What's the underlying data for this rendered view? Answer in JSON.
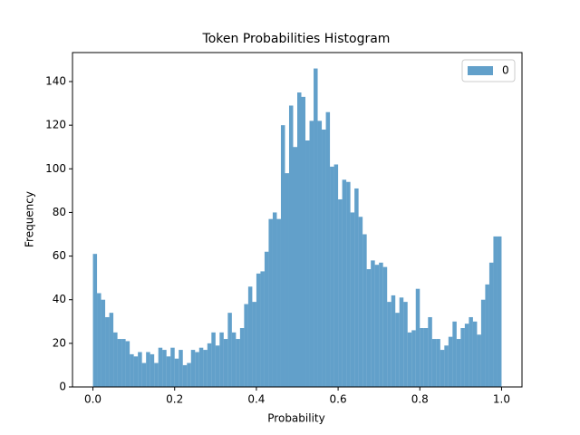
{
  "chart_data": {
    "type": "histogram",
    "title": "Token Probabilities Histogram",
    "xlabel": "Probability",
    "ylabel": "Frequency",
    "bins": [
      0,
      0.01,
      0.02,
      0.03,
      0.04,
      0.05,
      0.06,
      0.07,
      0.08,
      0.09,
      0.1,
      0.11,
      0.12,
      0.13,
      0.14,
      0.15,
      0.16,
      0.17,
      0.18,
      0.19,
      0.2,
      0.21,
      0.22,
      0.23,
      0.24,
      0.25,
      0.26,
      0.27,
      0.28,
      0.29,
      0.3,
      0.31,
      0.32,
      0.33,
      0.34,
      0.35,
      0.36,
      0.37,
      0.38,
      0.39,
      0.4,
      0.41,
      0.42,
      0.43,
      0.44,
      0.45,
      0.46,
      0.47,
      0.48,
      0.49,
      0.5,
      0.51,
      0.52,
      0.53,
      0.54,
      0.55,
      0.56,
      0.57,
      0.58,
      0.59,
      0.6,
      0.61,
      0.62,
      0.63,
      0.64,
      0.65,
      0.66,
      0.67,
      0.68,
      0.69,
      0.7,
      0.71,
      0.72,
      0.73,
      0.74,
      0.75,
      0.76,
      0.77,
      0.78,
      0.79,
      0.8,
      0.81,
      0.82,
      0.83,
      0.84,
      0.85,
      0.86,
      0.87,
      0.88,
      0.89,
      0.9,
      0.91,
      0.92,
      0.93,
      0.94,
      0.95,
      0.96,
      0.97,
      0.98,
      0.99,
      1
    ],
    "series": [
      {
        "name": "0",
        "color": "#1f77b4",
        "opacity": 0.7,
        "values": [
          61,
          43,
          40,
          32,
          34,
          25,
          22,
          22,
          21,
          15,
          14,
          16,
          11,
          16,
          15,
          11,
          18,
          17,
          14,
          18,
          13,
          17,
          10,
          11,
          17,
          16,
          18,
          17,
          20,
          25,
          19,
          25,
          22,
          34,
          25,
          22,
          27,
          38,
          46,
          39,
          52,
          53,
          62,
          77,
          80,
          77,
          120,
          98,
          129,
          110,
          135,
          133,
          113,
          122,
          146,
          122,
          118,
          126,
          101,
          102,
          86,
          95,
          94,
          80,
          91,
          78,
          70,
          54,
          58,
          56,
          57,
          55,
          39,
          42,
          34,
          41,
          39,
          25,
          26,
          45,
          27,
          27,
          32,
          22,
          22,
          17,
          19,
          23,
          30,
          22,
          27,
          29,
          32,
          30,
          24,
          40,
          47,
          57,
          69,
          69
        ]
      }
    ],
    "xlim": [
      -0.05,
      1.05
    ],
    "ylim": [
      0,
      153.3
    ],
    "xticks": [
      {
        "value": 0,
        "label": "0.0"
      },
      0.2,
      0.4,
      0.6,
      0.8,
      {
        "value": 1,
        "label": "1.0"
      }
    ],
    "yticks": [
      0,
      20,
      40,
      60,
      80,
      100,
      120,
      140
    ],
    "legend": "upper right"
  }
}
